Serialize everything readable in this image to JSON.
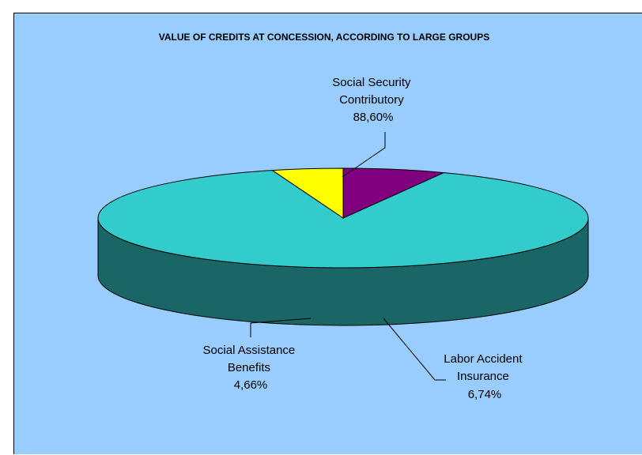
{
  "chart_data": {
    "type": "pie",
    "title": "VALUE OF CREDITS AT CONCESSION, ACCORDING TO LARGE GROUPS",
    "slices": [
      {
        "name_lines": [
          "Social Security",
          "Contributory"
        ],
        "value_label": "88,60%",
        "value": 88.6
      },
      {
        "name_lines": [
          "Labor Accident",
          "Insurance"
        ],
        "value_label": "6,74%",
        "value": 6.74
      },
      {
        "name_lines": [
          "Social Assistance",
          "Benefits"
        ],
        "value_label": "4,66%",
        "value": 4.66
      }
    ],
    "legend": "none",
    "colors": {
      "background": "#99ccff",
      "slice_tops": [
        "#33cccc",
        "#800080",
        "#ffff00"
      ],
      "slice_sides": [
        "#1a6666",
        "#400040",
        "#808000"
      ]
    }
  }
}
